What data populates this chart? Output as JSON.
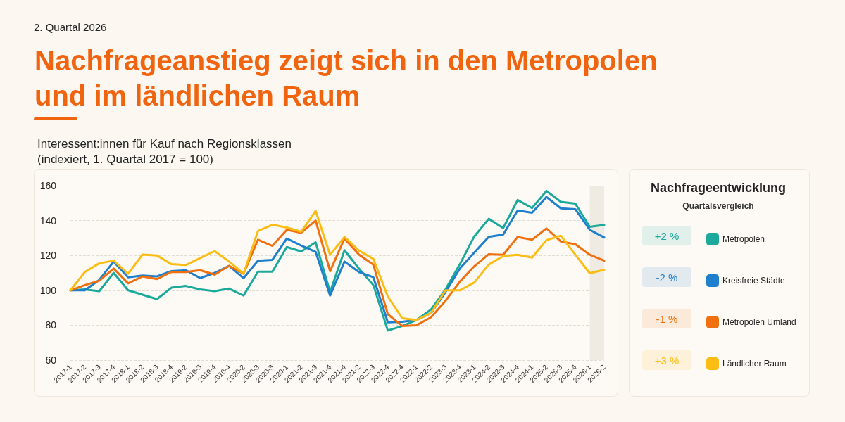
{
  "chart_data": {
    "type": "line",
    "title": "Nachfrageanstieg zeigt sich in den Metropolen und im ländlichen Raum",
    "subtitle": "Interessent:innen für Kauf nach Regionsklassen\n(indexiert, 1. Quartal 2017 = 100)",
    "legend_title": "Nachfrageentwicklung",
    "annotations": [
      "2. Quartal 2026",
      "Quartalsvergleich",
      "+2 %",
      "-2 %",
      "-1 %",
      "+3 %"
    ],
    "categories": [
      "2017-1",
      "2017-2",
      "2017-3",
      "2017-4",
      "2018-1",
      "2018-2",
      "2018-3",
      "2018-4",
      "2019-2",
      "2019-3",
      "2019-4",
      "2010-4",
      "2020-2",
      "2020-3",
      "2020-3",
      "2020-1",
      "2021-2",
      "2021-3",
      "2021-4",
      "2021-4",
      "2021-2",
      "2022-3",
      "2022-4",
      "2022-4",
      "2022-1",
      "2022-2",
      "2023-3",
      "2023-4",
      "2023-1",
      "2024-2",
      "2022-3",
      "2024-4",
      "2024-1",
      "2025-2",
      "2025-3",
      "2025-4",
      "2026-1",
      "2026-2"
    ],
    "series": [
      {
        "name": "Metropolen",
        "color": "#1aa99a",
        "values": [
          100,
          100.5,
          99.5,
          110,
          100,
          97.5,
          95,
          101.5,
          102.5,
          100.5,
          99.5,
          101,
          97,
          110.7,
          110.7,
          124.8,
          122.3,
          127.5,
          99,
          123,
          112.5,
          103,
          77,
          79.5,
          83,
          89,
          100.5,
          115,
          131,
          141,
          135.7,
          151.8,
          147.2,
          157,
          150.7,
          149.7,
          136.4,
          137.5
        ]
      },
      {
        "name": "Kreisfreie Städte",
        "color": "#1e7fcc",
        "values": [
          100,
          100,
          106,
          116.5,
          107.5,
          108.5,
          108,
          111,
          111.5,
          107,
          110,
          114,
          107,
          117,
          117.5,
          129.7,
          125.7,
          122,
          97,
          116.5,
          110.5,
          107.5,
          81.7,
          82,
          83,
          87,
          99,
          112.5,
          121.7,
          130.7,
          132,
          145.8,
          144.5,
          153.5,
          147,
          146.5,
          134.7,
          130.3
        ]
      },
      {
        "name": "Metropolen Umland",
        "color": "#f07010",
        "values": [
          100,
          103,
          105.5,
          112.5,
          104,
          108,
          106.5,
          110.5,
          110.5,
          111.5,
          109,
          114,
          109.5,
          129,
          125.5,
          134.7,
          133,
          140,
          111,
          129.7,
          120.5,
          114.7,
          86.3,
          79.6,
          80,
          84.6,
          94,
          105,
          113.8,
          120.7,
          120.4,
          130.6,
          129,
          135.5,
          128,
          126.4,
          120.4,
          117
        ]
      },
      {
        "name": "Ländlicher Raum",
        "color": "#fbbd14",
        "values": [
          100,
          110.5,
          115.5,
          117,
          109.5,
          120.5,
          120,
          115,
          114.5,
          118.5,
          122.5,
          116.5,
          109.5,
          134,
          137.6,
          136,
          133.6,
          145.5,
          120.4,
          130.6,
          122.8,
          118,
          96.5,
          84,
          83,
          87,
          100,
          100,
          104.5,
          114.8,
          119.7,
          120.4,
          118.8,
          128.8,
          131.3,
          120.4,
          109.8,
          111.8
        ]
      }
    ],
    "ylim": [
      60,
      160
    ],
    "yticks": [
      60,
      80,
      100,
      120,
      140,
      160
    ],
    "grid": "y",
    "legend": "right",
    "marker": "none",
    "line_style": "solid",
    "bands": [
      {
        "axis": "x",
        "from": "2026-1",
        "to": "2026-2",
        "color": "#efebe3"
      }
    ]
  }
}
